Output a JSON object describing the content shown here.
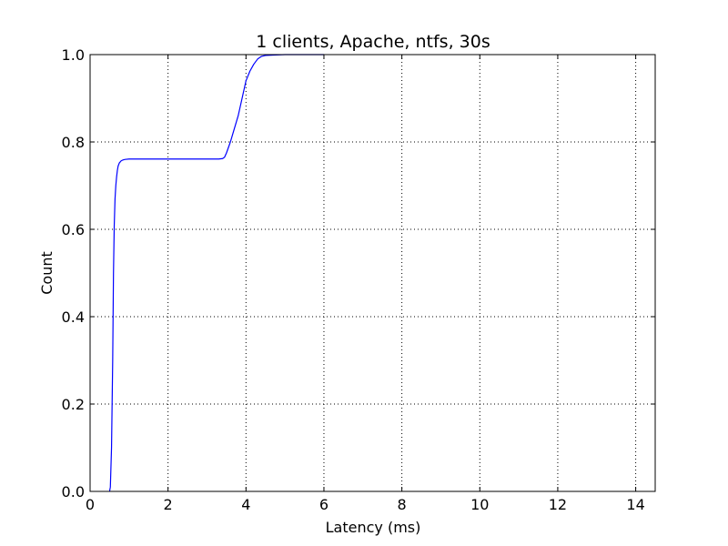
{
  "chart_data": {
    "type": "line",
    "title": "1 clients, Apache, ntfs, 30s",
    "xlabel": "Latency (ms)",
    "ylabel": "Count",
    "xlim": [
      0,
      14.5
    ],
    "ylim": [
      0,
      1.0
    ],
    "x_ticks": [
      0,
      2,
      4,
      6,
      8,
      10,
      12,
      14
    ],
    "y_ticks": [
      0.0,
      0.2,
      0.4,
      0.6,
      0.8,
      1.0
    ],
    "x_tick_labels": [
      "0",
      "2",
      "4",
      "6",
      "8",
      "10",
      "12",
      "14"
    ],
    "y_tick_labels": [
      "0.0",
      "0.2",
      "0.4",
      "0.6",
      "0.8",
      "1.0"
    ],
    "grid": true,
    "line_color": "#0000ff",
    "series": [
      {
        "x": [
          0.5,
          0.52,
          0.55,
          0.58,
          0.6,
          0.62,
          0.64,
          0.66,
          0.68,
          0.7,
          0.72,
          0.75,
          0.8,
          0.85,
          0.9,
          1.0,
          1.2,
          1.5,
          2.0,
          2.5,
          3.0,
          3.3,
          3.4,
          3.45,
          3.5,
          3.6,
          3.7,
          3.8,
          3.9,
          4.0,
          4.1,
          4.2,
          4.3,
          4.4,
          4.5,
          4.7,
          5.0,
          5.5,
          6.0
        ],
        "y": [
          0.0,
          0.01,
          0.1,
          0.3,
          0.5,
          0.61,
          0.67,
          0.7,
          0.72,
          0.735,
          0.745,
          0.752,
          0.757,
          0.759,
          0.76,
          0.761,
          0.761,
          0.761,
          0.761,
          0.761,
          0.761,
          0.761,
          0.762,
          0.765,
          0.775,
          0.8,
          0.83,
          0.86,
          0.9,
          0.94,
          0.962,
          0.978,
          0.99,
          0.996,
          0.998,
          0.999,
          1.0,
          1.0,
          1.0
        ]
      }
    ]
  }
}
